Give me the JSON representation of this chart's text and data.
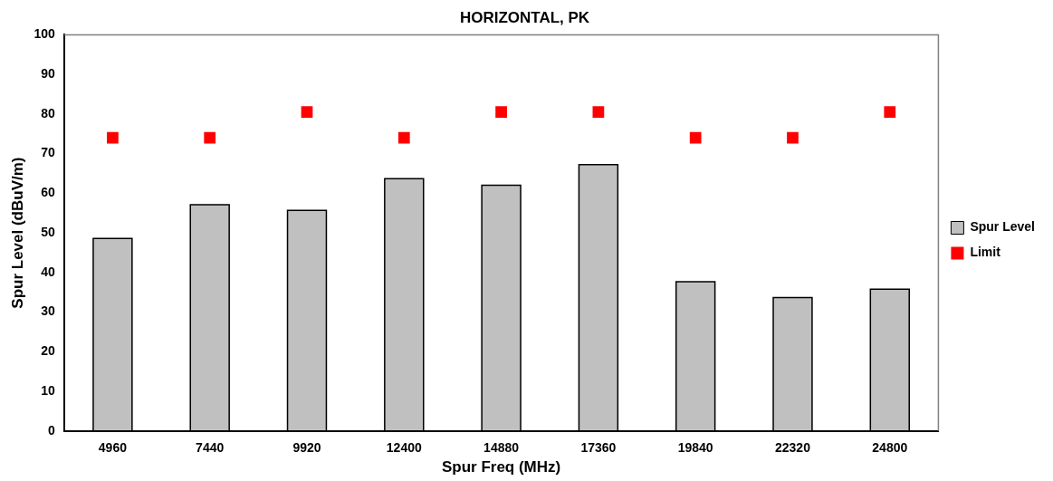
{
  "chart_data": {
    "type": "bar",
    "title": "HORIZONTAL, PK",
    "xlabel": "Spur Freq (MHz)",
    "ylabel": "Spur Level (dBuV/m)",
    "categories": [
      "4960",
      "7440",
      "9920",
      "12400",
      "14880",
      "17360",
      "19840",
      "22320",
      "24800"
    ],
    "series": [
      {
        "name": "Spur Level",
        "color": "#c0c0c0",
        "values": [
          48.6,
          57.1,
          55.7,
          63.7,
          62.0,
          67.2,
          37.7,
          33.7,
          35.8
        ]
      },
      {
        "name": "Limit",
        "type": "scatter",
        "color": "#ff0000",
        "values": [
          74,
          74,
          80.5,
          74,
          80.5,
          80.5,
          74,
          74,
          80.5
        ]
      }
    ],
    "ylim": [
      0,
      100
    ],
    "yticks": [
      0,
      10,
      20,
      30,
      40,
      50,
      60,
      70,
      80,
      90,
      100
    ],
    "grid": false,
    "marker": "square",
    "legend": "right"
  }
}
